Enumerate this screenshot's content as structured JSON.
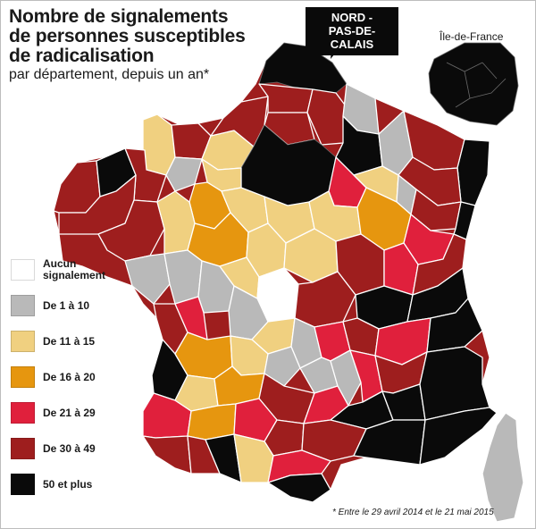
{
  "title": "Nombre de signalements\nde personnes susceptibles\nde radicalisation",
  "subtitle": "par département, depuis un an*",
  "callout": "NORD -\nPAS-DE-CALAIS",
  "inset_label": "Île-de-France",
  "legend": [
    {
      "label": "Aucun\nsignalement",
      "color": "#ffffff"
    },
    {
      "label": "De 1 à 10",
      "color": "#b9b9b9"
    },
    {
      "label": "De 11 à 15",
      "color": "#f0d080"
    },
    {
      "label": "De 16 à 20",
      "color": "#e6960f"
    },
    {
      "label": "De 21 à 29",
      "color": "#e0203c"
    },
    {
      "label": "De 30 à 49",
      "color": "#9e1e1e"
    },
    {
      "label": "50 et plus",
      "color": "#0a0a0a"
    }
  ],
  "footnote": "* Entre le 29 avril 2014 et le 21 mai 2015"
}
